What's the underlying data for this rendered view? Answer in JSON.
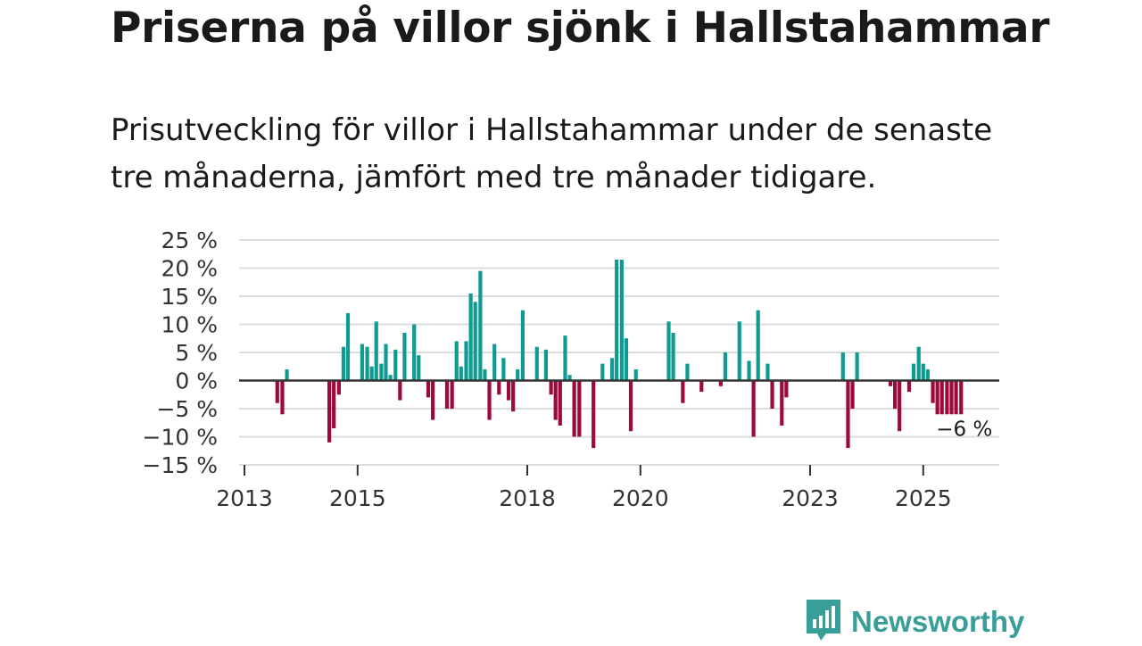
{
  "title": "Priserna på villor sjönk i Hallstahammar",
  "subtitle": "Prisutveckling för villor i Hallstahammar under de senaste tre månaderna, jämfört med tre månader tidigare.",
  "colors": {
    "positive": "#0f9a92",
    "negative": "#9c0a3c",
    "grid": "#dddddd",
    "zero": "#333333",
    "logo": "#3a9e98"
  },
  "brand": {
    "name": "Newsworthy",
    "icon": "bar-chart-speech-bubble-icon"
  },
  "chart_data": {
    "type": "bar",
    "ylim": [
      -15,
      25
    ],
    "y_ticks": [
      25,
      20,
      15,
      10,
      5,
      0,
      -5,
      -10,
      -15
    ],
    "y_tick_labels": [
      "25 %",
      "20 %",
      "15 %",
      "10 %",
      "5 %",
      "0 %",
      "−5 %",
      "−10 %",
      "−15 %"
    ],
    "x_ticks": [
      2013,
      2015,
      2018,
      2020,
      2023,
      2025
    ],
    "x_tick_labels": [
      "2013",
      "2015",
      "2018",
      "2020",
      "2023",
      "2025"
    ],
    "xlim": [
      2013,
      2026.3
    ],
    "grid": true,
    "annotation": {
      "text": "−6 %",
      "x": 2025.67,
      "y": -6
    },
    "x": [
      2013.58,
      2013.67,
      2013.75,
      2014.5,
      2014.58,
      2014.67,
      2014.75,
      2014.83,
      2015.08,
      2015.17,
      2015.25,
      2015.33,
      2015.42,
      2015.5,
      2015.58,
      2015.67,
      2015.75,
      2015.83,
      2016.0,
      2016.08,
      2016.25,
      2016.33,
      2016.58,
      2016.67,
      2016.75,
      2016.83,
      2016.92,
      2017.0,
      2017.08,
      2017.17,
      2017.25,
      2017.33,
      2017.42,
      2017.5,
      2017.58,
      2017.67,
      2017.75,
      2017.83,
      2017.92,
      2018.17,
      2018.33,
      2018.42,
      2018.5,
      2018.58,
      2018.67,
      2018.75,
      2018.83,
      2018.92,
      2019.17,
      2019.33,
      2019.5,
      2019.58,
      2019.67,
      2019.75,
      2019.83,
      2019.92,
      2020.5,
      2020.58,
      2020.75,
      2020.83,
      2021.08,
      2021.42,
      2021.5,
      2021.75,
      2021.92,
      2022.0,
      2022.08,
      2022.25,
      2022.33,
      2022.5,
      2022.58,
      2023.58,
      2023.67,
      2023.75,
      2023.83,
      2024.42,
      2024.5,
      2024.58,
      2024.75,
      2024.83,
      2024.92,
      2025.0,
      2025.08,
      2025.17,
      2025.25,
      2025.33,
      2025.42,
      2025.5,
      2025.58,
      2025.67
    ],
    "values": [
      -4,
      -6,
      2,
      -11,
      -8.5,
      -2.5,
      6,
      12,
      6.5,
      6,
      2.5,
      10.5,
      3,
      6.5,
      1,
      5.5,
      -3.5,
      8.5,
      10,
      4.5,
      -3,
      -7,
      -5,
      -5,
      7,
      2.5,
      7,
      15.5,
      14,
      19.5,
      2,
      -7,
      6.5,
      -2.5,
      4,
      -3.5,
      -5.5,
      2,
      12.5,
      6,
      5.5,
      -2.5,
      -7,
      -8,
      8,
      1,
      -10,
      -10,
      -12,
      3,
      4,
      21.5,
      21.5,
      7.5,
      -9,
      2,
      10.5,
      8.5,
      -4,
      3,
      -2,
      -1,
      5,
      10.5,
      3.5,
      -10,
      12.5,
      3,
      -5,
      -8,
      -3,
      5,
      -12,
      -5,
      5,
      -1,
      -5,
      -9,
      -2,
      3,
      6,
      3,
      2,
      -4,
      -6,
      -6,
      -6,
      -6,
      -6,
      -6
    ]
  }
}
